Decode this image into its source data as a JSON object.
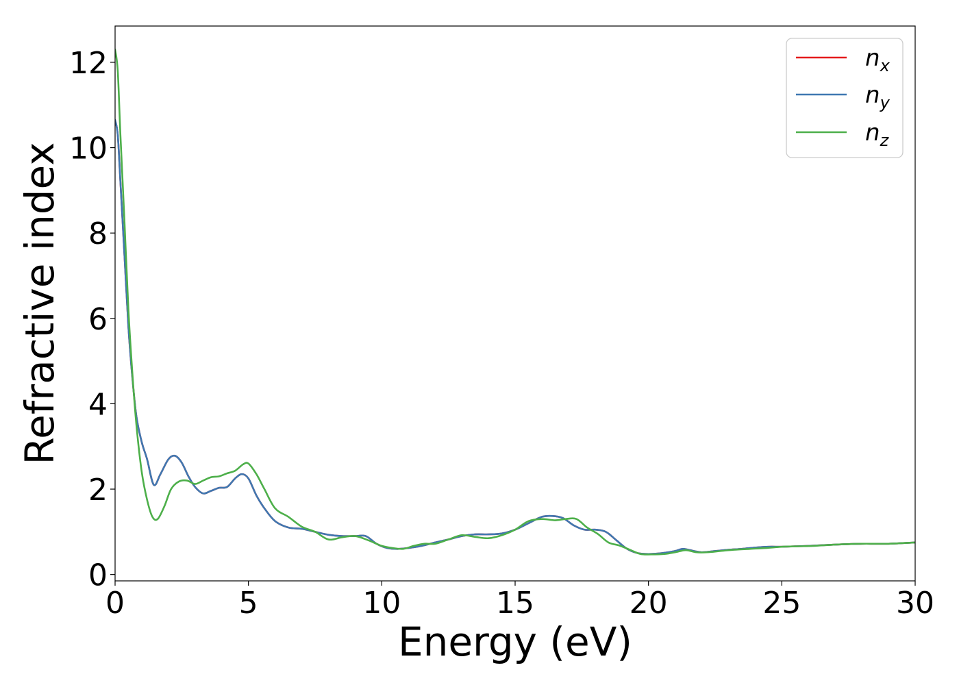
{
  "chart_data": {
    "type": "line",
    "xlabel": "Energy (eV)",
    "ylabel": "Refractive index",
    "xlim": [
      0,
      30
    ],
    "ylim": [
      -0.15,
      12.85
    ],
    "xticks": [
      "0",
      "5",
      "10",
      "15",
      "20",
      "25",
      "30"
    ],
    "yticks": [
      "0",
      "2",
      "4",
      "6",
      "8",
      "10",
      "12"
    ],
    "grid": false,
    "legend_position": "top-right",
    "series": [
      {
        "name": "n",
        "sub": "x",
        "color": "#e41a1c",
        "x": [
          0,
          0.1,
          0.2,
          0.35,
          0.5,
          0.65,
          0.8,
          1.0,
          1.2,
          1.45,
          1.7,
          2.0,
          2.25,
          2.5,
          2.75,
          3.0,
          3.3,
          3.6,
          3.9,
          4.2,
          4.5,
          4.75,
          5.0,
          5.3,
          5.6,
          6.0,
          6.5,
          7.0,
          7.5,
          8.0,
          8.5,
          9.0,
          9.4,
          9.8,
          10.2,
          10.6,
          11.0,
          11.5,
          12.0,
          12.5,
          13.0,
          13.5,
          14.0,
          14.5,
          15.0,
          15.5,
          16.0,
          16.4,
          16.8,
          17.2,
          17.6,
          18.0,
          18.4,
          18.8,
          19.2,
          19.6,
          20.0,
          20.5,
          21.0,
          21.3,
          21.7,
          22.0,
          22.5,
          23.0,
          23.5,
          24.0,
          24.5,
          25.0,
          25.5,
          26.0,
          27.0,
          28.0,
          29.0,
          30.0
        ],
        "y": [
          10.65,
          10.3,
          9.2,
          7.5,
          5.8,
          4.6,
          3.7,
          3.1,
          2.7,
          2.1,
          2.35,
          2.7,
          2.78,
          2.62,
          2.3,
          2.05,
          1.9,
          1.96,
          2.03,
          2.05,
          2.25,
          2.35,
          2.25,
          1.85,
          1.55,
          1.25,
          1.1,
          1.07,
          1.0,
          0.93,
          0.9,
          0.9,
          0.9,
          0.72,
          0.62,
          0.6,
          0.62,
          0.67,
          0.75,
          0.82,
          0.9,
          0.94,
          0.94,
          0.96,
          1.05,
          1.2,
          1.35,
          1.37,
          1.32,
          1.15,
          1.05,
          1.05,
          1.0,
          0.8,
          0.6,
          0.5,
          0.48,
          0.5,
          0.55,
          0.6,
          0.55,
          0.52,
          0.55,
          0.58,
          0.6,
          0.63,
          0.65,
          0.65,
          0.66,
          0.67,
          0.7,
          0.72,
          0.72,
          0.75
        ]
      },
      {
        "name": "n",
        "sub": "y",
        "color": "#3f78b1",
        "x": [
          0,
          0.1,
          0.2,
          0.35,
          0.5,
          0.65,
          0.8,
          1.0,
          1.2,
          1.45,
          1.7,
          2.0,
          2.25,
          2.5,
          2.75,
          3.0,
          3.3,
          3.6,
          3.9,
          4.2,
          4.5,
          4.75,
          5.0,
          5.3,
          5.6,
          6.0,
          6.5,
          7.0,
          7.5,
          8.0,
          8.5,
          9.0,
          9.4,
          9.8,
          10.2,
          10.6,
          11.0,
          11.5,
          12.0,
          12.5,
          13.0,
          13.5,
          14.0,
          14.5,
          15.0,
          15.5,
          16.0,
          16.4,
          16.8,
          17.2,
          17.6,
          18.0,
          18.4,
          18.8,
          19.2,
          19.6,
          20.0,
          20.5,
          21.0,
          21.3,
          21.7,
          22.0,
          22.5,
          23.0,
          23.5,
          24.0,
          24.5,
          25.0,
          25.5,
          26.0,
          27.0,
          28.0,
          29.0,
          30.0
        ],
        "y": [
          10.65,
          10.3,
          9.2,
          7.5,
          5.8,
          4.6,
          3.7,
          3.1,
          2.7,
          2.1,
          2.35,
          2.7,
          2.78,
          2.62,
          2.3,
          2.05,
          1.9,
          1.96,
          2.03,
          2.05,
          2.25,
          2.35,
          2.25,
          1.85,
          1.55,
          1.25,
          1.1,
          1.07,
          1.0,
          0.93,
          0.9,
          0.9,
          0.9,
          0.72,
          0.62,
          0.6,
          0.62,
          0.67,
          0.75,
          0.82,
          0.9,
          0.94,
          0.94,
          0.96,
          1.05,
          1.2,
          1.35,
          1.37,
          1.32,
          1.15,
          1.05,
          1.05,
          1.0,
          0.8,
          0.6,
          0.5,
          0.48,
          0.5,
          0.55,
          0.6,
          0.55,
          0.52,
          0.55,
          0.58,
          0.6,
          0.63,
          0.65,
          0.65,
          0.66,
          0.67,
          0.7,
          0.72,
          0.72,
          0.75
        ]
      },
      {
        "name": "n",
        "sub": "z",
        "color": "#4daf4a",
        "x": [
          0,
          0.1,
          0.2,
          0.35,
          0.5,
          0.65,
          0.8,
          1.0,
          1.2,
          1.4,
          1.6,
          1.85,
          2.1,
          2.4,
          2.7,
          3.0,
          3.3,
          3.6,
          3.9,
          4.2,
          4.5,
          4.8,
          5.0,
          5.3,
          5.6,
          6.0,
          6.5,
          7.0,
          7.5,
          8.0,
          8.5,
          9.0,
          9.5,
          10.0,
          10.4,
          10.8,
          11.2,
          11.6,
          12.0,
          12.5,
          13.0,
          13.5,
          14.0,
          14.5,
          15.0,
          15.5,
          16.0,
          16.5,
          16.9,
          17.3,
          17.7,
          18.1,
          18.5,
          18.9,
          19.3,
          19.7,
          20.1,
          20.6,
          21.0,
          21.4,
          21.8,
          22.2,
          22.7,
          23.2,
          23.8,
          24.4,
          25.0,
          25.6,
          26.2,
          27.0,
          28.0,
          29.0,
          30.0
        ],
        "y": [
          12.3,
          11.8,
          10.3,
          8.3,
          6.2,
          4.7,
          3.5,
          2.4,
          1.75,
          1.35,
          1.3,
          1.6,
          2.0,
          2.18,
          2.2,
          2.12,
          2.2,
          2.28,
          2.3,
          2.37,
          2.43,
          2.58,
          2.6,
          2.35,
          2.0,
          1.55,
          1.35,
          1.12,
          1.0,
          0.82,
          0.87,
          0.9,
          0.8,
          0.67,
          0.62,
          0.6,
          0.67,
          0.72,
          0.72,
          0.82,
          0.92,
          0.88,
          0.85,
          0.92,
          1.05,
          1.25,
          1.3,
          1.27,
          1.3,
          1.3,
          1.1,
          0.95,
          0.75,
          0.68,
          0.58,
          0.48,
          0.47,
          0.48,
          0.52,
          0.57,
          0.52,
          0.52,
          0.55,
          0.58,
          0.6,
          0.62,
          0.65,
          0.66,
          0.67,
          0.7,
          0.72,
          0.72,
          0.75
        ]
      }
    ]
  }
}
